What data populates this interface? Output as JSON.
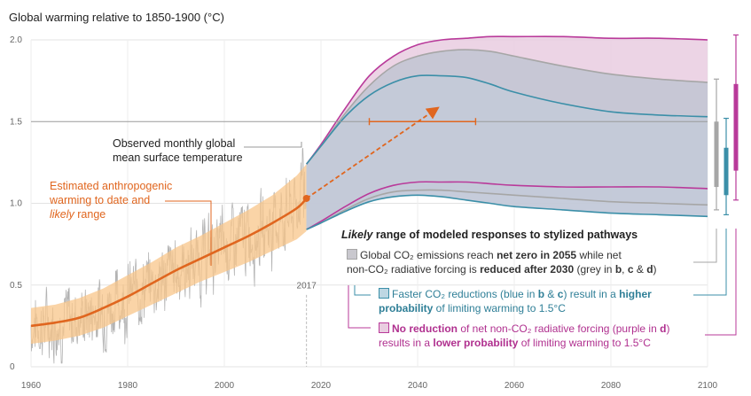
{
  "chart_data": {
    "type": "area",
    "title": "Global warming relative to 1850-1900 (°C)",
    "xlim": [
      1960,
      2100
    ],
    "ylim": [
      0,
      2.0
    ],
    "x_ticks": [
      1960,
      1980,
      2000,
      2020,
      2040,
      2060,
      2080,
      2100
    ],
    "y_ticks": [
      0,
      0.5,
      1.0,
      1.5,
      2.0
    ],
    "y_tick_labels": [
      "0",
      "0.5",
      "1.0",
      "1.5",
      "2.0"
    ],
    "reference_line": 1.5,
    "marker_year_label": "2017",
    "observed": {
      "label_line1": "Observed monthly global",
      "label_line2": "mean surface temperature",
      "color": "#b3b3b3"
    },
    "estimated": {
      "label_line1": "Estimated anthropogenic",
      "label_line2": "warming to date and",
      "label_line3_italic": "likely",
      "label_line3_rest": " range",
      "color": "#e0661f",
      "band_color": "#f8c58a",
      "x": [
        1960,
        1965,
        1970,
        1975,
        1980,
        1985,
        1990,
        1995,
        2000,
        2005,
        2010,
        2015,
        2017
      ],
      "y": [
        0.25,
        0.27,
        0.3,
        0.36,
        0.43,
        0.51,
        0.59,
        0.66,
        0.73,
        0.8,
        0.88,
        0.97,
        1.03
      ],
      "lower": [
        0.14,
        0.16,
        0.19,
        0.24,
        0.31,
        0.38,
        0.45,
        0.52,
        0.58,
        0.64,
        0.71,
        0.78,
        0.83
      ],
      "upper": [
        0.36,
        0.38,
        0.42,
        0.48,
        0.56,
        0.64,
        0.73,
        0.8,
        0.88,
        0.96,
        1.05,
        1.17,
        1.24
      ]
    },
    "projection_arrow": {
      "from": [
        2017,
        1.03
      ],
      "to": [
        2044,
        1.58
      ]
    },
    "range_bar": {
      "y": 1.5,
      "from": 2030,
      "to": 2052
    },
    "pathways": {
      "x": [
        2017,
        2020,
        2025,
        2030,
        2035,
        2040,
        2045,
        2050,
        2055,
        2060,
        2070,
        2080,
        2090,
        2100
      ],
      "grey": {
        "upper": [
          1.24,
          1.35,
          1.55,
          1.72,
          1.84,
          1.9,
          1.93,
          1.94,
          1.93,
          1.9,
          1.84,
          1.79,
          1.76,
          1.74
        ],
        "lower": [
          0.84,
          0.88,
          0.96,
          1.03,
          1.07,
          1.08,
          1.08,
          1.07,
          1.06,
          1.05,
          1.03,
          1.01,
          1.0,
          0.99
        ]
      },
      "blue": {
        "upper": [
          1.24,
          1.35,
          1.53,
          1.66,
          1.74,
          1.78,
          1.78,
          1.77,
          1.73,
          1.68,
          1.61,
          1.56,
          1.54,
          1.53
        ],
        "lower": [
          0.84,
          0.88,
          0.95,
          1.01,
          1.04,
          1.05,
          1.04,
          1.02,
          1.0,
          0.98,
          0.96,
          0.94,
          0.93,
          0.92
        ]
      },
      "purple": {
        "upper": [
          1.24,
          1.36,
          1.58,
          1.78,
          1.9,
          1.97,
          2.0,
          2.01,
          2.02,
          2.02,
          2.02,
          2.01,
          2.01,
          2.0
        ],
        "lower": [
          0.84,
          0.89,
          0.98,
          1.06,
          1.11,
          1.13,
          1.13,
          1.13,
          1.12,
          1.11,
          1.1,
          1.1,
          1.1,
          1.09
        ]
      }
    },
    "side_bars": [
      {
        "name": "grey",
        "min": 0.96,
        "max": 1.76,
        "likely_min": 1.1,
        "likely_max": 1.5
      },
      {
        "name": "blue",
        "min": 0.93,
        "max": 1.52,
        "likely_min": 1.05,
        "likely_max": 1.34
      },
      {
        "name": "purple",
        "min": 1.02,
        "max": 2.03,
        "likely_min": 1.2,
        "likely_max": 1.73
      }
    ],
    "colors": {
      "grey": "#a6a6a6",
      "grey_fill": "#c9c8ce",
      "blue": "#3b8fa8",
      "blue_fill": "#bed7e3",
      "purple": "#b93a9a",
      "purple_fill": "#e9cde0",
      "overlap_fill": "#c4c5d5"
    }
  },
  "legend": {
    "title_italic": "Likely",
    "title_rest": " range of modeled responses to stylized pathways",
    "grey": {
      "t1": "Global CO₂ emissions reach ",
      "b1": "net zero in 2055",
      "t2": " while net",
      "t3": "non-CO₂ radiative forcing is ",
      "b2": "reduced after 2030",
      "t4": " (grey in ",
      "b3": "b",
      "t5": ", ",
      "b4": "c",
      "t6": " & ",
      "b5": "d",
      "t7": ")"
    },
    "blue": {
      "t1": "Faster CO₂ reductions (blue in ",
      "b1": "b",
      "t2": " & ",
      "b2": "c",
      "t3": ") result in a ",
      "b3": "higher",
      "b4": "probability",
      "t4": " of limiting warming to 1.5°C"
    },
    "purple": {
      "b1": "No reduction",
      "t1": " of net non-CO₂ radiative forcing (purple in ",
      "b2": "d",
      "t2": ")",
      "t3": "results in a ",
      "b3": "lower probability",
      "t4": " of limiting warming to 1.5°C"
    }
  }
}
